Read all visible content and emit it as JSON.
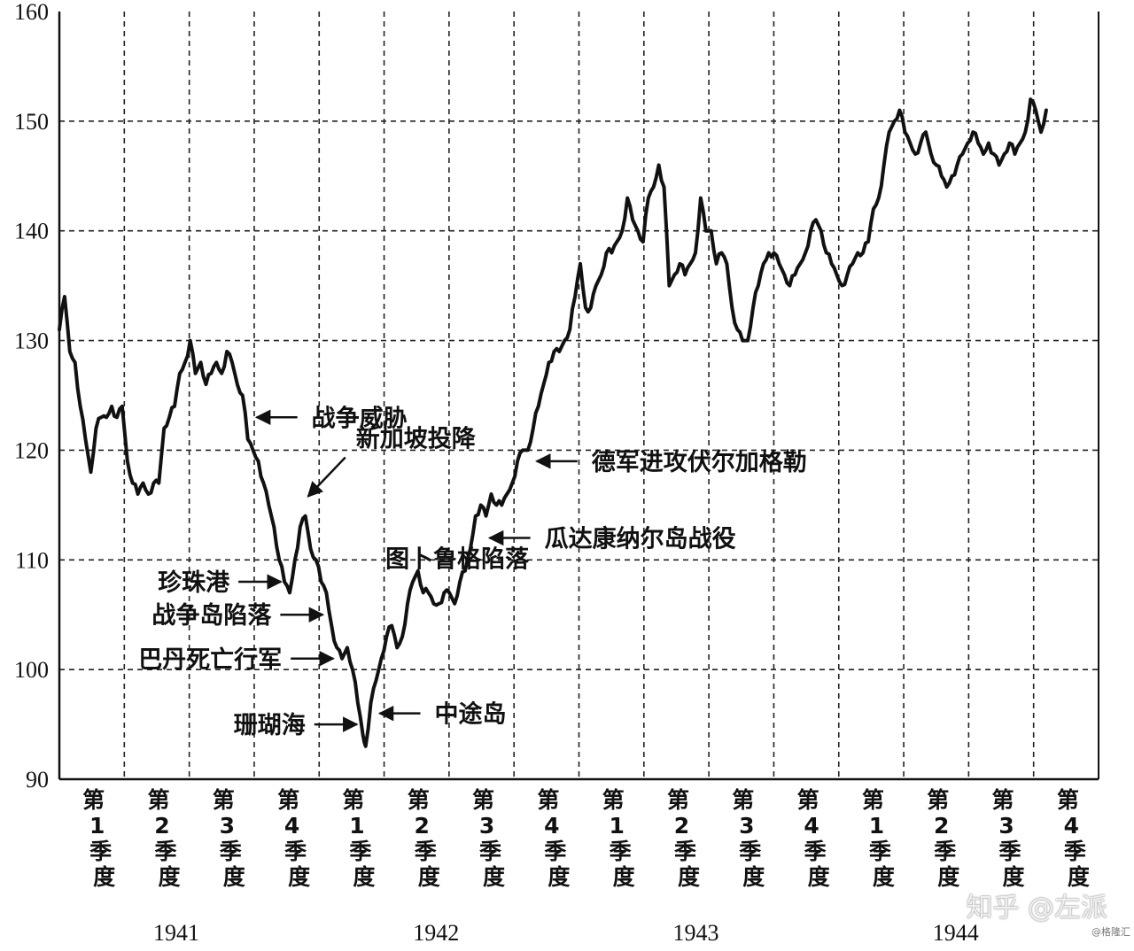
{
  "chart_data": {
    "type": "line",
    "title": "",
    "xlabel": "",
    "ylabel": "",
    "ylim": [
      90,
      160
    ],
    "yticks": [
      90,
      100,
      110,
      120,
      130,
      140,
      150,
      160
    ],
    "grid": true,
    "x_range": [
      1941.0,
      1944.97
    ],
    "quarter_labels": [
      "第1季度",
      "第2季度",
      "第3季度",
      "第4季度",
      "第1季度",
      "第2季度",
      "第3季度",
      "第4季度",
      "第1季度",
      "第2季度",
      "第3季度",
      "第4季度",
      "第1季度",
      "第2季度",
      "第3季度",
      "第4季度"
    ],
    "years": [
      "1941",
      "1942",
      "1943",
      "1944"
    ],
    "series": [
      {
        "points": [
          [
            1941.0,
            131
          ],
          [
            1941.02,
            134
          ],
          [
            1941.04,
            129
          ],
          [
            1941.06,
            128
          ],
          [
            1941.08,
            124
          ],
          [
            1941.1,
            121
          ],
          [
            1941.12,
            118
          ],
          [
            1941.14,
            122
          ],
          [
            1941.16,
            123
          ],
          [
            1941.18,
            123
          ],
          [
            1941.2,
            124
          ],
          [
            1941.22,
            123
          ],
          [
            1941.24,
            124
          ],
          [
            1941.26,
            119
          ],
          [
            1941.28,
            117
          ],
          [
            1941.3,
            116
          ],
          [
            1941.32,
            117
          ],
          [
            1941.34,
            116
          ],
          [
            1941.36,
            117
          ],
          [
            1941.38,
            117
          ],
          [
            1941.4,
            122
          ],
          [
            1941.42,
            123
          ],
          [
            1941.44,
            124
          ],
          [
            1941.46,
            127
          ],
          [
            1941.48,
            128
          ],
          [
            1941.5,
            130
          ],
          [
            1941.52,
            127
          ],
          [
            1941.54,
            128
          ],
          [
            1941.56,
            126
          ],
          [
            1941.58,
            127
          ],
          [
            1941.6,
            128
          ],
          [
            1941.62,
            127
          ],
          [
            1941.64,
            129
          ],
          [
            1941.66,
            128
          ],
          [
            1941.68,
            126
          ],
          [
            1941.7,
            125
          ],
          [
            1941.72,
            121
          ],
          [
            1941.74,
            120
          ],
          [
            1941.76,
            119
          ],
          [
            1941.78,
            117
          ],
          [
            1941.8,
            115
          ],
          [
            1941.82,
            113
          ],
          [
            1941.84,
            110
          ],
          [
            1941.86,
            108
          ],
          [
            1941.88,
            107
          ],
          [
            1941.9,
            110
          ],
          [
            1941.92,
            113
          ],
          [
            1941.94,
            114
          ],
          [
            1941.96,
            111
          ],
          [
            1941.98,
            110
          ],
          [
            1942.0,
            108
          ],
          [
            1942.02,
            107
          ],
          [
            1942.04,
            104
          ],
          [
            1942.06,
            102
          ],
          [
            1942.08,
            101
          ],
          [
            1942.1,
            102
          ],
          [
            1942.12,
            100
          ],
          [
            1942.14,
            97
          ],
          [
            1942.16,
            94
          ],
          [
            1942.17,
            93
          ],
          [
            1942.19,
            97
          ],
          [
            1942.21,
            99
          ],
          [
            1942.23,
            101
          ],
          [
            1942.25,
            103
          ],
          [
            1942.27,
            104
          ],
          [
            1942.29,
            102
          ],
          [
            1942.31,
            103
          ],
          [
            1942.33,
            106
          ],
          [
            1942.35,
            108
          ],
          [
            1942.37,
            109
          ],
          [
            1942.39,
            107
          ],
          [
            1942.41,
            107
          ],
          [
            1942.43,
            106
          ],
          [
            1942.45,
            106
          ],
          [
            1942.47,
            107
          ],
          [
            1942.49,
            107
          ],
          [
            1942.51,
            106
          ],
          [
            1942.53,
            108
          ],
          [
            1942.55,
            109
          ],
          [
            1942.57,
            111
          ],
          [
            1942.59,
            114
          ],
          [
            1942.61,
            115
          ],
          [
            1942.63,
            114
          ],
          [
            1942.65,
            116
          ],
          [
            1942.67,
            115
          ],
          [
            1942.69,
            115
          ],
          [
            1942.71,
            116
          ],
          [
            1942.73,
            117
          ],
          [
            1942.75,
            119
          ],
          [
            1942.77,
            120
          ],
          [
            1942.79,
            120
          ],
          [
            1942.81,
            122
          ],
          [
            1942.83,
            124
          ],
          [
            1942.85,
            126
          ],
          [
            1942.87,
            128
          ],
          [
            1942.89,
            129
          ],
          [
            1942.91,
            129
          ],
          [
            1942.93,
            130
          ],
          [
            1942.95,
            131
          ],
          [
            1942.97,
            134
          ],
          [
            1942.99,
            137
          ],
          [
            1943.01,
            133
          ],
          [
            1943.03,
            133
          ],
          [
            1943.05,
            135
          ],
          [
            1943.07,
            136
          ],
          [
            1943.09,
            138
          ],
          [
            1943.11,
            138
          ],
          [
            1943.13,
            139
          ],
          [
            1943.15,
            140
          ],
          [
            1943.17,
            143
          ],
          [
            1943.19,
            141
          ],
          [
            1943.21,
            140
          ],
          [
            1943.23,
            139
          ],
          [
            1943.25,
            143
          ],
          [
            1943.27,
            144
          ],
          [
            1943.29,
            146
          ],
          [
            1943.31,
            144
          ],
          [
            1943.33,
            135
          ],
          [
            1943.35,
            136
          ],
          [
            1943.37,
            137
          ],
          [
            1943.39,
            136
          ],
          [
            1943.41,
            137
          ],
          [
            1943.43,
            138
          ],
          [
            1943.45,
            143
          ],
          [
            1943.47,
            140
          ],
          [
            1943.49,
            140
          ],
          [
            1943.51,
            137
          ],
          [
            1943.53,
            138
          ],
          [
            1943.55,
            137
          ],
          [
            1943.57,
            133
          ],
          [
            1943.59,
            131
          ],
          [
            1943.61,
            130
          ],
          [
            1943.63,
            130
          ],
          [
            1943.65,
            133
          ],
          [
            1943.67,
            135
          ],
          [
            1943.69,
            137
          ],
          [
            1943.71,
            138
          ],
          [
            1943.73,
            138
          ],
          [
            1943.75,
            137
          ],
          [
            1943.77,
            136
          ],
          [
            1943.79,
            135
          ],
          [
            1943.81,
            136
          ],
          [
            1943.83,
            137
          ],
          [
            1943.85,
            138
          ],
          [
            1943.87,
            140
          ],
          [
            1943.89,
            141
          ],
          [
            1943.91,
            140
          ],
          [
            1943.93,
            138
          ],
          [
            1943.95,
            137
          ],
          [
            1943.97,
            136
          ],
          [
            1943.99,
            135
          ],
          [
            1944.01,
            136
          ],
          [
            1944.03,
            137
          ],
          [
            1944.05,
            138
          ],
          [
            1944.07,
            138
          ],
          [
            1944.09,
            139
          ],
          [
            1944.11,
            142
          ],
          [
            1944.13,
            143
          ],
          [
            1944.15,
            146
          ],
          [
            1944.17,
            149
          ],
          [
            1944.19,
            150
          ],
          [
            1944.21,
            151
          ],
          [
            1944.23,
            149
          ],
          [
            1944.25,
            148
          ],
          [
            1944.27,
            147
          ],
          [
            1944.29,
            148
          ],
          [
            1944.31,
            149
          ],
          [
            1944.33,
            147
          ],
          [
            1944.35,
            146
          ],
          [
            1944.37,
            145
          ],
          [
            1944.39,
            144
          ],
          [
            1944.41,
            145
          ],
          [
            1944.43,
            146
          ],
          [
            1944.45,
            147
          ],
          [
            1944.47,
            148
          ],
          [
            1944.49,
            149
          ],
          [
            1944.51,
            148
          ],
          [
            1944.53,
            147
          ],
          [
            1944.55,
            148
          ],
          [
            1944.57,
            147
          ],
          [
            1944.59,
            146
          ],
          [
            1944.61,
            147
          ],
          [
            1944.63,
            148
          ],
          [
            1944.65,
            147
          ],
          [
            1944.67,
            148
          ],
          [
            1944.69,
            149
          ],
          [
            1944.71,
            152
          ],
          [
            1944.73,
            151
          ],
          [
            1944.75,
            149
          ],
          [
            1944.77,
            151
          ]
        ]
      }
    ],
    "annotations": [
      {
        "text": "战争威胁",
        "x": 1941.74,
        "y": 123,
        "arrow": "left"
      },
      {
        "text": "新加坡投降",
        "x": 1941.93,
        "y": 114.5,
        "arrow": "down-left"
      },
      {
        "text": "图卜鲁格陷落",
        "x": 1942.52,
        "y": 110,
        "arrow": "none"
      },
      {
        "text": "珍珠港",
        "x": 1941.86,
        "y": 108,
        "arrow": "right"
      },
      {
        "text": "战争岛陷落",
        "x": 1942.02,
        "y": 105,
        "arrow": "right"
      },
      {
        "text": "巴丹死亡行军",
        "x": 1942.06,
        "y": 101,
        "arrow": "right"
      },
      {
        "text": "珊瑚海",
        "x": 1942.15,
        "y": 95,
        "arrow": "right"
      },
      {
        "text": "中途岛",
        "x": 1942.21,
        "y": 96,
        "arrow": "left"
      },
      {
        "text": "瓜达康纳尔岛战役",
        "x": 1942.63,
        "y": 112,
        "arrow": "left"
      },
      {
        "text": "德军进攻伏尔加格勒",
        "x": 1942.81,
        "y": 119,
        "arrow": "left"
      }
    ]
  },
  "watermark": {
    "text": "知乎 @左派",
    "sub": "@格隆汇"
  }
}
